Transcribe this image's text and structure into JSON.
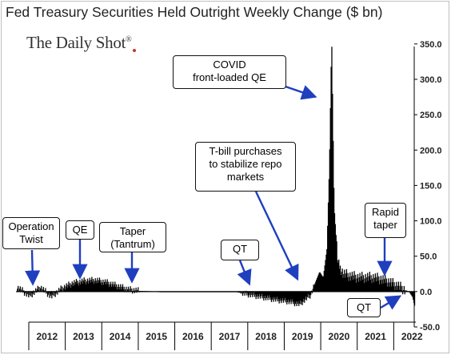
{
  "title": "Fed Treasury Securities Held Outright Weekly Change ($ bn)",
  "logo": {
    "text": "The Daily Shot",
    "mark": "®"
  },
  "colors": {
    "bars": "#000000",
    "arrow": "#1f3fbf",
    "axis": "#000000"
  },
  "annotations": [
    {
      "id": "operation-twist",
      "text": "Operation\nTwist"
    },
    {
      "id": "qe",
      "text": "QE"
    },
    {
      "id": "taper-tantrum",
      "text": "Taper\n(Tantrum)"
    },
    {
      "id": "qt-2018",
      "text": "QT"
    },
    {
      "id": "tbill",
      "text": "T-bill purchases\nto stabilize repo\nmarkets"
    },
    {
      "id": "covid",
      "text": "COVID\nfront-loaded QE"
    },
    {
      "id": "rapid-taper",
      "text": "Rapid\ntaper"
    },
    {
      "id": "qt-2022",
      "text": "QT"
    }
  ],
  "chart_data": {
    "type": "bar",
    "ylim": [
      -50,
      360
    ],
    "yticks": [
      "350.0",
      "300.0",
      "250.0",
      "200.0",
      "150.0",
      "100.0",
      "50.0",
      "0.0",
      "-50.0"
    ],
    "ytick_values": [
      350,
      300,
      250,
      200,
      150,
      100,
      50,
      0,
      -50
    ],
    "x_labels": [
      "2012",
      "2013",
      "2014",
      "2015",
      "2016",
      "2017",
      "2018",
      "2019",
      "2020",
      "2021",
      "2022"
    ],
    "x_range": [
      2011.5,
      2022.5
    ],
    "series": [
      {
        "values_description_free": true,
        "x": [
          2011.6,
          2011.9,
          2012.2,
          2012.5,
          2012.8,
          2013.1,
          2013.4,
          2013.7,
          2014.0,
          2014.3,
          2014.6,
          2014.9,
          2015.5,
          2016.5,
          2017.5,
          2017.8,
          2018.1,
          2018.4,
          2018.7,
          2019.0,
          2019.3,
          2019.6,
          2019.75,
          2019.85,
          2019.95,
          2020.05,
          2020.12,
          2020.18,
          2020.25,
          2020.35,
          2020.5,
          2020.7,
          2020.9,
          2021.1,
          2021.3,
          2021.5,
          2021.7,
          2021.9,
          2022.0,
          2022.1,
          2022.2,
          2022.3,
          2022.4,
          2022.45
        ],
        "y": [
          5,
          -6,
          6,
          -7,
          5,
          12,
          15,
          16,
          13,
          8,
          3,
          1,
          0,
          0,
          0,
          -3,
          -6,
          -9,
          -12,
          -14,
          -18,
          -5,
          15,
          28,
          20,
          60,
          180,
          362,
          120,
          40,
          25,
          22,
          20,
          20,
          20,
          18,
          15,
          10,
          8,
          5,
          2,
          0,
          -8,
          -20
        ]
      }
    ]
  }
}
